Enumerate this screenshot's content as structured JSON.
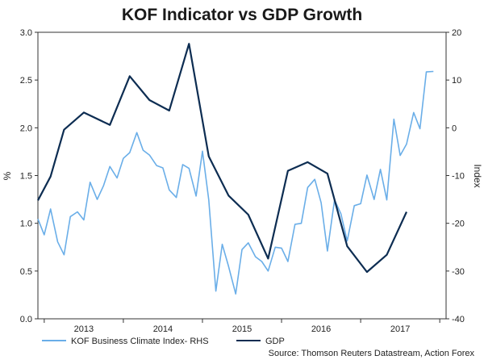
{
  "chart_data": {
    "type": "line",
    "title": "KOF Indicator vs GDP Growth",
    "ylabel_left": "%",
    "ylabel_right": "Index",
    "ylim_left": [
      0.0,
      3.0
    ],
    "ylim_right": [
      -40,
      20
    ],
    "yticks_left": [
      "0.0",
      "0.5",
      "1.0",
      "1.5",
      "2.0",
      "2.5",
      "3.0"
    ],
    "yticks_right": [
      "-40",
      "-30",
      "-20",
      "-10",
      "0",
      "10",
      "20"
    ],
    "xlim": [
      2012.42,
      2017.58
    ],
    "xticks": [
      {
        "label": "2013",
        "pos": 2013.0
      },
      {
        "label": "2014",
        "pos": 2014.0
      },
      {
        "label": "2015",
        "pos": 2015.0
      },
      {
        "label": "2016",
        "pos": 2016.0
      },
      {
        "label": "2017",
        "pos": 2017.0
      }
    ],
    "year_boundaries": [
      2012.5,
      2013.5,
      2014.5,
      2015.5,
      2016.5,
      2017.5
    ],
    "series": [
      {
        "name": "KOF Business Climate Index- RHS",
        "axis": "right",
        "color": "#6aaee8",
        "x": [
          2012.42,
          2012.5,
          2012.58,
          2012.67,
          2012.75,
          2012.83,
          2012.92,
          2013.0,
          2013.08,
          2013.17,
          2013.25,
          2013.33,
          2013.42,
          2013.5,
          2013.58,
          2013.67,
          2013.75,
          2013.83,
          2013.92,
          2014.0,
          2014.08,
          2014.17,
          2014.25,
          2014.33,
          2014.42,
          2014.5,
          2014.58,
          2014.67,
          2014.75,
          2014.83,
          2014.92,
          2015.0,
          2015.08,
          2015.17,
          2015.25,
          2015.33,
          2015.42,
          2015.5,
          2015.58,
          2015.67,
          2015.75,
          2015.83,
          2015.92,
          2016.0,
          2016.08,
          2016.17,
          2016.25,
          2016.33,
          2016.42,
          2016.5,
          2016.58,
          2016.67,
          2016.75,
          2016.83,
          2016.92,
          2017.0,
          2017.08,
          2017.17,
          2017.25,
          2017.33,
          2017.42
        ],
        "values": [
          -19.1,
          -22.4,
          -17.0,
          -23.9,
          -26.6,
          -18.6,
          -17.6,
          -19.3,
          -11.4,
          -15.0,
          -12.1,
          -8.1,
          -10.5,
          -6.4,
          -5.2,
          -1.0,
          -4.7,
          -5.7,
          -7.9,
          -8.4,
          -13.0,
          -14.6,
          -7.7,
          -8.5,
          -14.3,
          -4.9,
          -15.1,
          -34.2,
          -24.4,
          -29.0,
          -34.8,
          -25.5,
          -24.1,
          -27.0,
          -28.0,
          -30.0,
          -25.0,
          -25.2,
          -28.0,
          -20.2,
          -20.0,
          -12.5,
          -10.8,
          -15.7,
          -25.8,
          -15.1,
          -18.0,
          -23.7,
          -16.3,
          -15.9,
          -9.9,
          -15.0,
          -8.7,
          -15.1,
          1.8,
          -5.8,
          -3.4,
          3.2,
          -0.2,
          11.7,
          11.8
        ]
      },
      {
        "name": "GDP",
        "axis": "left",
        "color": "#0d2d52",
        "x": [
          2012.42,
          2012.58,
          2012.75,
          2013.0,
          2013.33,
          2013.58,
          2013.83,
          2014.08,
          2014.33,
          2014.58,
          2014.83,
          2015.08,
          2015.33,
          2015.58,
          2015.83,
          2016.08,
          2016.33,
          2016.58,
          2016.83,
          2017.08,
          2017.33
        ],
        "values": [
          1.24,
          1.49,
          1.98,
          2.16,
          2.03,
          2.54,
          2.29,
          2.18,
          2.88,
          1.7,
          1.29,
          1.09,
          0.63,
          1.55,
          1.64,
          1.52,
          0.76,
          0.49,
          0.67,
          1.12,
          null
        ]
      }
    ],
    "legend": [
      "KOF Business Climate Index- RHS",
      "GDP"
    ],
    "legend_placement": "bottom-left",
    "source": "Source: Thomson Reuters Datastream, Action Forex"
  }
}
